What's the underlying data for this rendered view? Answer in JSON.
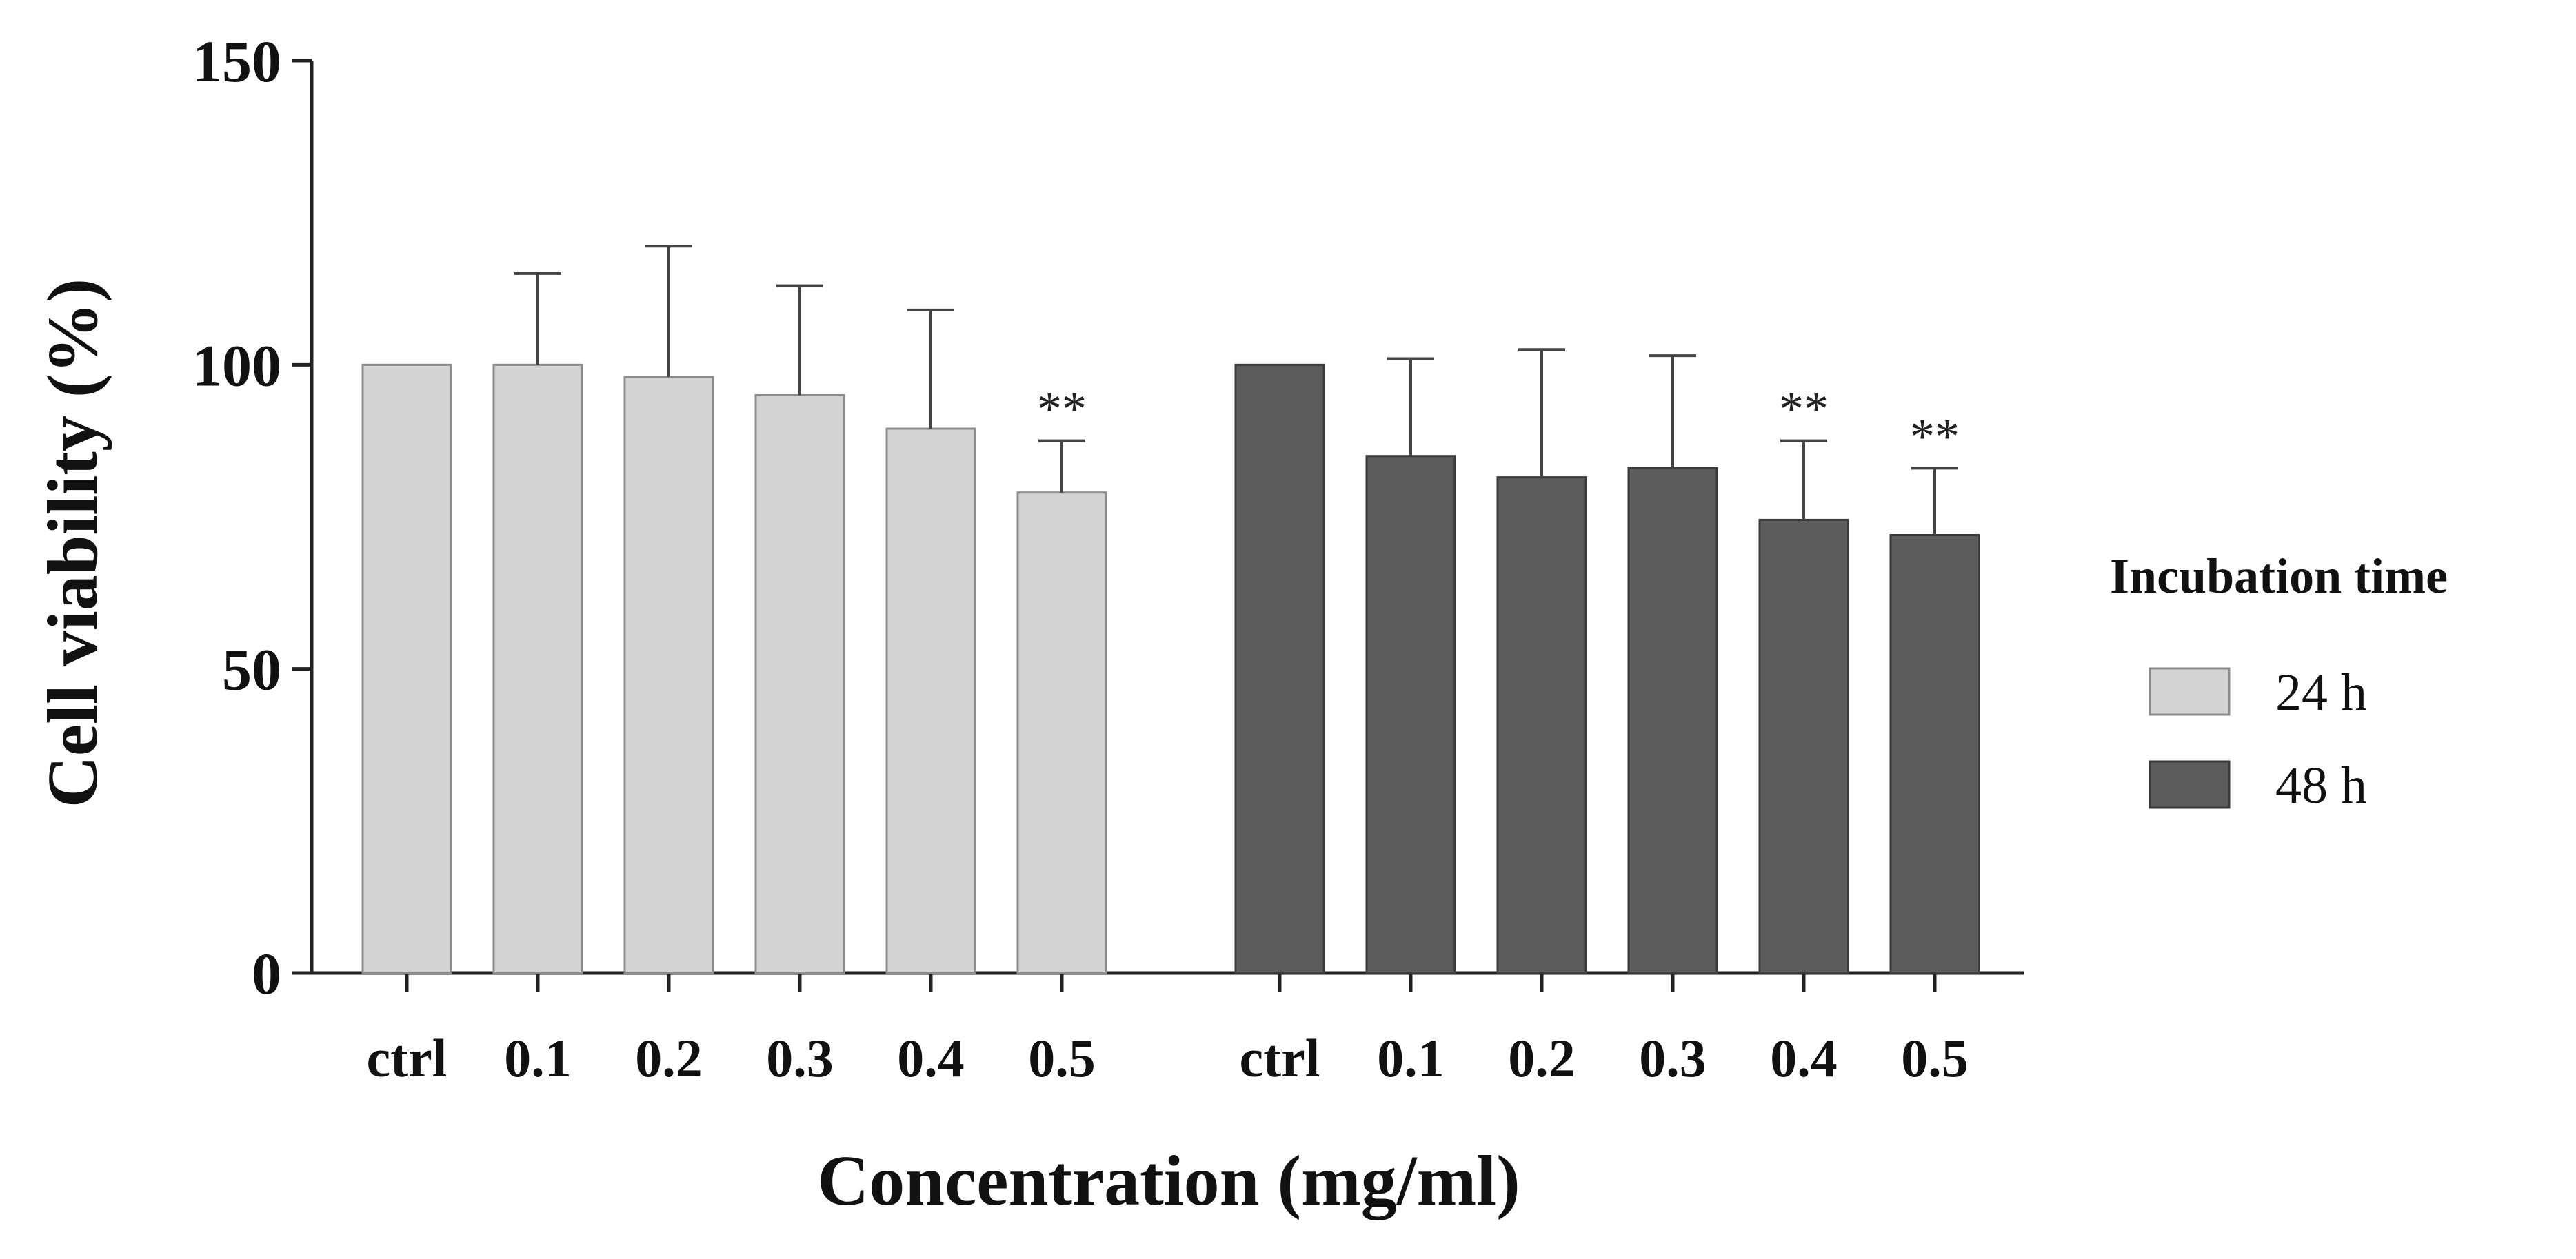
{
  "chart_data": {
    "type": "bar",
    "title": "",
    "xlabel": "Concentration (mg/ml)",
    "ylabel": "Cell viability (%)",
    "ylim": [
      0,
      150
    ],
    "yticks": [
      0,
      50,
      100,
      150
    ],
    "grid": false,
    "legend_title": "Incubation time",
    "legend_position": "right",
    "groups": [
      {
        "name": "24 h",
        "color": "#d3d3d3",
        "edge_color": "#8c8c8c",
        "categories": [
          "ctrl",
          "0.1",
          "0.2",
          "0.3",
          "0.4",
          "0.5"
        ],
        "values": [
          100,
          100,
          98,
          95,
          89.5,
          79
        ],
        "errors": [
          0,
          15,
          21.5,
          18,
          19.5,
          8.5
        ],
        "significance": [
          "",
          "",
          "",
          "",
          "",
          "**"
        ]
      },
      {
        "name": "48 h",
        "color": "#5c5c5c",
        "edge_color": "#3a3a3a",
        "categories": [
          "ctrl",
          "0.1",
          "0.2",
          "0.3",
          "0.4",
          "0.5"
        ],
        "values": [
          100,
          85,
          81.5,
          83,
          74.5,
          72
        ],
        "errors": [
          0,
          16,
          21,
          18.5,
          13,
          11
        ],
        "significance": [
          "",
          "",
          "",
          "",
          "**",
          "**"
        ]
      }
    ]
  }
}
